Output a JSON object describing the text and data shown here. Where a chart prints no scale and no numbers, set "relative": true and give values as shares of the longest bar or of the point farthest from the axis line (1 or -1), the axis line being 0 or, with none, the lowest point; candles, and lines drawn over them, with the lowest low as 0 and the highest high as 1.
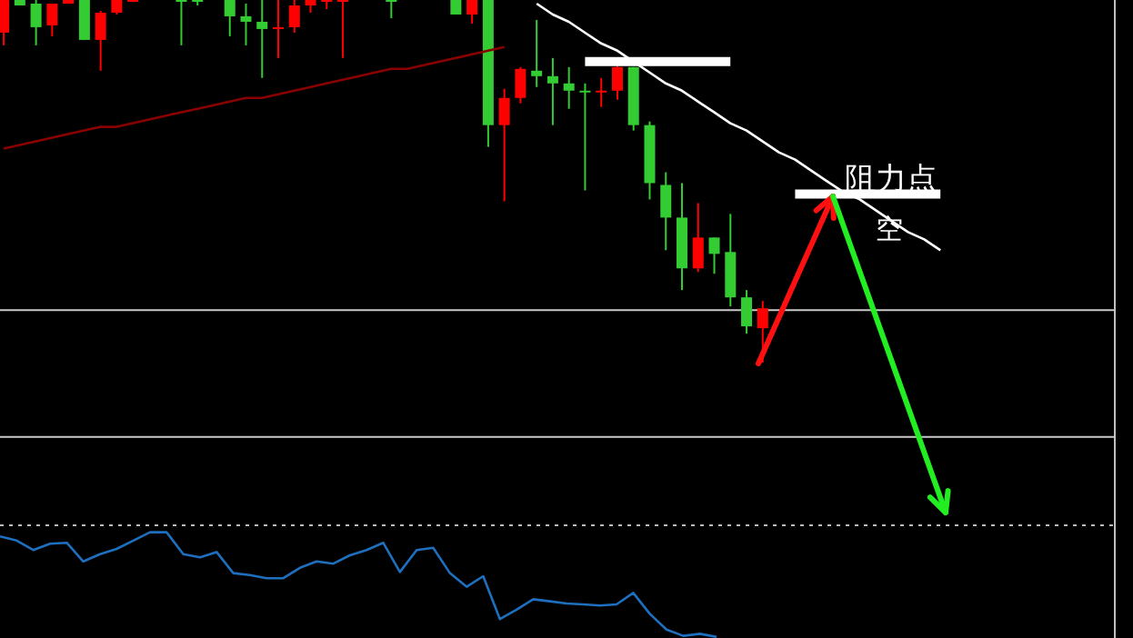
{
  "chart_data": [
    {
      "type": "candlestick",
      "relative": true,
      "categories": [
        null,
        null,
        null,
        null,
        null,
        null,
        null,
        null,
        null,
        null,
        null,
        null,
        null,
        null,
        null,
        null,
        null,
        null,
        null,
        null,
        null,
        null,
        null,
        null,
        null,
        null,
        null,
        null,
        null,
        null,
        null,
        null,
        null,
        null,
        null,
        null,
        null,
        null,
        null,
        null,
        null,
        null,
        null,
        null,
        null,
        null,
        null,
        null,
        null,
        null,
        null,
        null,
        null,
        null,
        null,
        null,
        null,
        null,
        null,
        null,
        null,
        null,
        null,
        null,
        null,
        null,
        null,
        null,
        null,
        null
      ],
      "colors": [
        "#ff0000",
        "#33cc33",
        "#33cc33",
        "#ff0000",
        "#ff0000",
        "#33cc33",
        "#ff0000",
        "#ff0000",
        "#ff0000",
        null,
        null,
        "#33cc33",
        "#33cc33",
        null,
        "#33cc33",
        "#33cc33",
        "#33cc33",
        "#ff0000",
        "#ff0000",
        "#ff0000",
        "#ff0000",
        "#ff0000",
        null,
        null,
        "#33cc33",
        null,
        null,
        null,
        "#33cc33",
        "#ff0000",
        "#33cc33",
        "#ff0000",
        "#ff0000",
        "#33cc33",
        "#33cc33",
        "#33cc33",
        "#33cc33",
        "#ff0000",
        "#ff0000",
        "#33cc33",
        "#33cc33",
        "#33cc33",
        "#33cc33",
        "#ff0000",
        "#33cc33",
        "#33cc33",
        "#33cc33",
        "#ff0000",
        null,
        null,
        null,
        null,
        null,
        null,
        null,
        null,
        null,
        null,
        null,
        null,
        null,
        null,
        null,
        null,
        null,
        null,
        null,
        null,
        null,
        null
      ],
      "ohlc": [
        [
          0.91,
          1,
          0.875,
          1
        ],
        [
          1,
          1,
          0.985,
          0.985
        ],
        [
          0.99,
          1,
          0.875,
          0.925
        ],
        [
          0.93,
          0.99,
          0.9,
          0.99
        ],
        [
          0.99,
          1,
          0.99,
          1
        ],
        [
          1,
          1,
          0.89,
          0.89
        ],
        [
          0.89,
          0.97,
          0.805,
          0.965
        ],
        [
          0.965,
          1,
          0.96,
          1
        ],
        [
          1,
          1,
          0.995,
          1
        ],
        null,
        null,
        [
          1,
          1,
          0.875,
          1
        ],
        [
          1,
          1,
          0.985,
          1
        ],
        null,
        [
          1,
          1,
          0.9,
          0.955
        ],
        [
          0.955,
          0.99,
          0.875,
          0.94
        ],
        [
          0.94,
          1,
          0.785,
          0.92
        ],
        [
          0.925,
          1,
          0.84,
          0.925
        ],
        [
          0.925,
          1,
          0.91,
          0.985
        ],
        [
          0.985,
          1,
          0.965,
          1
        ],
        [
          0.995,
          1,
          0.975,
          1
        ],
        [
          1,
          1,
          0.84,
          1
        ],
        null,
        null,
        [
          1,
          1,
          0.95,
          1
        ],
        null,
        null,
        null,
        [
          1,
          1,
          0.96,
          0.96
        ],
        [
          0.96,
          1,
          0.935,
          1
        ],
        [
          1,
          1,
          0.595,
          0.655
        ],
        [
          0.655,
          0.755,
          0.445,
          0.73
        ],
        [
          0.73,
          0.815,
          0.715,
          0.81
        ],
        [
          0.805,
          0.945,
          0.76,
          0.79
        ],
        [
          0.79,
          0.84,
          0.655,
          0.77
        ],
        [
          0.77,
          0.815,
          0.7,
          0.75
        ],
        [
          0.75,
          0.77,
          0.475,
          0.745
        ],
        [
          0.745,
          0.785,
          0.705,
          0.75
        ],
        [
          0.75,
          0.82,
          0.725,
          0.815
        ],
        [
          0.815,
          0.815,
          0.64,
          0.655
        ],
        [
          0.655,
          0.665,
          0.45,
          0.495
        ],
        [
          0.49,
          0.525,
          0.31,
          0.4
        ],
        [
          0.4,
          0.495,
          0.2,
          0.26
        ],
        [
          0.26,
          0.44,
          0.25,
          0.345
        ],
        [
          0.345,
          0.345,
          0.245,
          0.3
        ],
        [
          0.305,
          0.41,
          0.155,
          0.18
        ],
        [
          0.18,
          0.2,
          0.08,
          0.1
        ],
        [
          0.095,
          0.17,
          0,
          0.15
        ],
        null,
        null,
        null,
        null,
        null,
        null,
        null,
        null,
        null,
        null,
        null,
        null,
        null,
        null,
        null,
        null,
        null,
        null,
        null,
        null,
        null,
        null
      ],
      "series": [
        {
          "type": "line",
          "color": "#8b0000",
          "values": [
            0.59,
            0.6,
            0.61,
            0.62,
            0.63,
            0.64,
            0.65,
            0.65,
            0.66,
            0.67,
            0.68,
            0.69,
            0.7,
            0.71,
            0.72,
            0.73,
            0.73,
            0.74,
            0.75,
            0.76,
            0.77,
            0.78,
            0.79,
            0.8,
            0.81,
            0.81,
            0.82,
            0.83,
            0.84,
            0.85,
            0.86,
            0.87,
            null,
            null,
            null,
            null,
            null,
            null,
            null,
            null,
            null,
            null,
            null,
            null,
            null,
            null,
            null,
            null,
            null,
            null,
            null,
            null,
            null,
            null,
            null,
            null,
            null,
            null,
            null,
            null,
            null,
            null,
            null,
            null,
            null,
            null,
            null,
            null,
            null,
            null
          ]
        },
        {
          "type": "line",
          "color": "#ffffff",
          "values": [
            null,
            null,
            null,
            null,
            null,
            null,
            null,
            null,
            null,
            null,
            null,
            null,
            null,
            null,
            null,
            null,
            null,
            null,
            null,
            null,
            null,
            null,
            null,
            null,
            null,
            null,
            null,
            null,
            null,
            null,
            null,
            null,
            null,
            0.99,
            0.96,
            0.94,
            0.91,
            0.88,
            0.86,
            0.83,
            0.8,
            0.77,
            0.75,
            0.72,
            0.69,
            0.66,
            0.64,
            0.61,
            0.58,
            0.56,
            0.53,
            0.5,
            0.47,
            0.45,
            0.42,
            0.39,
            0.36,
            0.34,
            0.31,
            null,
            null,
            null,
            null,
            null,
            null,
            null,
            null,
            null,
            null,
            null
          ]
        },
        {
          "type": "line",
          "color": "#ffffff",
          "values": [
            null,
            null,
            null,
            null,
            null,
            null,
            null,
            null,
            null,
            null,
            null,
            null,
            null,
            null,
            null,
            null,
            null,
            null,
            null,
            null,
            null,
            null,
            null,
            null,
            null,
            null,
            null,
            null,
            null,
            null,
            null,
            null,
            null,
            null,
            null,
            null,
            0.83,
            0.83,
            0.83,
            0.83,
            0.83,
            0.83,
            0.83,
            0.83,
            0.83,
            0.83,
            null,
            null,
            null,
            null,
            null,
            null,
            null,
            null,
            null,
            null,
            null,
            null,
            null,
            null,
            null,
            null,
            null,
            null,
            null,
            null,
            null,
            null,
            null,
            null
          ]
        },
        {
          "type": "line",
          "color": "#ffffff",
          "values": [
            null,
            null,
            null,
            null,
            null,
            null,
            null,
            null,
            null,
            null,
            null,
            null,
            null,
            null,
            null,
            null,
            null,
            null,
            null,
            null,
            null,
            null,
            null,
            null,
            null,
            null,
            null,
            null,
            null,
            null,
            null,
            null,
            null,
            null,
            null,
            null,
            null,
            null,
            null,
            null,
            null,
            null,
            null,
            null,
            null,
            null,
            null,
            null,
            null,
            0.465,
            0.465,
            0.465,
            0.465,
            0.465,
            0.465,
            0.465,
            0.465,
            0.465,
            0.465,
            null,
            null,
            null,
            null,
            null,
            null,
            null,
            null,
            null,
            null,
            null
          ]
        }
      ],
      "ref_lines": [
        {
          "axis": "y",
          "value": 0.145,
          "color": "#c8c8c8"
        },
        {
          "axis": "y",
          "value": -0.205,
          "color": "#c8c8c8"
        }
      ],
      "annotations": [
        "阻力点",
        "空"
      ]
    },
    {
      "type": "line",
      "relative": true,
      "categories": [
        null,
        null,
        null,
        null,
        null,
        null,
        null,
        null,
        null,
        null,
        null,
        null,
        null,
        null,
        null,
        null,
        null,
        null,
        null,
        null,
        null,
        null,
        null,
        null,
        null,
        null,
        null,
        null,
        null,
        null,
        null,
        null,
        null,
        null,
        null,
        null,
        null,
        null,
        null,
        null,
        null,
        null,
        null,
        null
      ],
      "series": [
        {
          "color": "#1f6fbf",
          "values": [
            0.96,
            0.92,
            0.83,
            0.89,
            0.9,
            0.72,
            0.79,
            0.84,
            0.92,
            1,
            1,
            0.79,
            0.76,
            0.81,
            0.61,
            0.59,
            0.56,
            0.56,
            0.66,
            0.72,
            0.7,
            0.78,
            0.83,
            0.9,
            0.62,
            0.83,
            0.85,
            0.61,
            0.48,
            0.58,
            0.17,
            0.26,
            0.36,
            0.34,
            0.32,
            0.31,
            0.3,
            0.31,
            0.42,
            0.22,
            0.07,
            0.01,
            0.03,
            0
          ]
        }
      ],
      "ref_lines": [
        {
          "axis": "y",
          "value": 1.066,
          "color": "#bbbbbb",
          "line_style": "dotted"
        }
      ]
    }
  ]
}
